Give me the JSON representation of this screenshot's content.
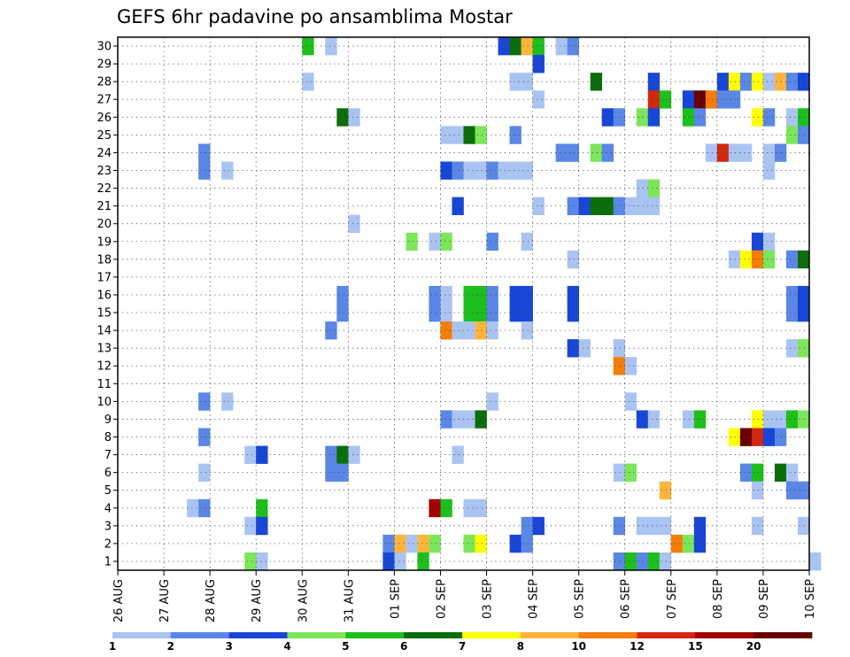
{
  "chart_data": {
    "type": "heatmap",
    "title": "GEFS 6hr padavine po ansamblima Mostar",
    "xlabel": "",
    "ylabel": "",
    "x_ticks": [
      "26 AUG",
      "27 AUG",
      "28 AUG",
      "29 AUG",
      "30 AUG",
      "31 AUG",
      "01 SEP",
      "02 SEP",
      "03 SEP",
      "04 SEP",
      "05 SEP",
      "06 SEP",
      "07 SEP",
      "08 SEP",
      "09 SEP",
      "10 SEP"
    ],
    "y_ticks": [
      1,
      2,
      3,
      4,
      5,
      6,
      7,
      8,
      9,
      10,
      11,
      12,
      13,
      14,
      15,
      16,
      17,
      18,
      19,
      20,
      21,
      22,
      23,
      24,
      25,
      26,
      27,
      28,
      29,
      30
    ],
    "xlim": [
      0,
      15
    ],
    "ylim": [
      0.5,
      30.5
    ],
    "x_unit": "days from 26 AUG",
    "grid": true,
    "colorbar": {
      "levels": [
        1,
        2,
        3,
        4,
        5,
        6,
        7,
        8,
        10,
        12,
        15,
        20
      ],
      "colors": [
        "#aac4f2",
        "#5a86e6",
        "#1846d6",
        "#7ce65a",
        "#1cbf1c",
        "#0b6e0b",
        "#ffff00",
        "#ffb43c",
        "#f57d0a",
        "#d22810",
        "#a00000",
        "#690000"
      ]
    },
    "cells": [
      {
        "m": 30,
        "t": 4.0,
        "c": 4
      },
      {
        "m": 30,
        "t": 4.5,
        "c": 0
      },
      {
        "m": 30,
        "t": 8.25,
        "c": 2
      },
      {
        "m": 30,
        "t": 8.5,
        "c": 5
      },
      {
        "m": 30,
        "t": 8.75,
        "c": 7
      },
      {
        "m": 30,
        "t": 9.0,
        "c": 4
      },
      {
        "m": 30,
        "t": 9.5,
        "c": 0
      },
      {
        "m": 30,
        "t": 9.75,
        "c": 1
      },
      {
        "m": 29,
        "t": 9.0,
        "c": 2
      },
      {
        "m": 28,
        "t": 4.0,
        "c": 0
      },
      {
        "m": 28,
        "t": 8.5,
        "c": 0
      },
      {
        "m": 28,
        "t": 8.75,
        "c": 0
      },
      {
        "m": 28,
        "t": 10.25,
        "c": 5
      },
      {
        "m": 28,
        "t": 11.5,
        "c": 2
      },
      {
        "m": 28,
        "t": 13.0,
        "c": 2
      },
      {
        "m": 28,
        "t": 13.25,
        "c": 6
      },
      {
        "m": 28,
        "t": 13.5,
        "c": 1
      },
      {
        "m": 28,
        "t": 13.75,
        "c": 6
      },
      {
        "m": 28,
        "t": 14.0,
        "c": 0
      },
      {
        "m": 28,
        "t": 14.25,
        "c": 7
      },
      {
        "m": 28,
        "t": 14.5,
        "c": 1
      },
      {
        "m": 28,
        "t": 14.75,
        "c": 2
      },
      {
        "m": 27,
        "t": 9.0,
        "c": 0
      },
      {
        "m": 27,
        "t": 11.5,
        "c": 9
      },
      {
        "m": 27,
        "t": 11.75,
        "c": 4
      },
      {
        "m": 27,
        "t": 12.25,
        "c": 2
      },
      {
        "m": 27,
        "t": 12.5,
        "c": 11
      },
      {
        "m": 27,
        "t": 12.75,
        "c": 8
      },
      {
        "m": 27,
        "t": 13.0,
        "c": 1
      },
      {
        "m": 27,
        "t": 13.25,
        "c": 1
      },
      {
        "m": 26,
        "t": 4.75,
        "c": 5
      },
      {
        "m": 26,
        "t": 5.0,
        "c": 0
      },
      {
        "m": 26,
        "t": 10.5,
        "c": 2
      },
      {
        "m": 26,
        "t": 10.75,
        "c": 1
      },
      {
        "m": 26,
        "t": 11.25,
        "c": 3
      },
      {
        "m": 26,
        "t": 11.5,
        "c": 2
      },
      {
        "m": 26,
        "t": 12.25,
        "c": 4
      },
      {
        "m": 26,
        "t": 12.5,
        "c": 1
      },
      {
        "m": 26,
        "t": 13.75,
        "c": 6
      },
      {
        "m": 26,
        "t": 14.0,
        "c": 1
      },
      {
        "m": 26,
        "t": 14.5,
        "c": 0
      },
      {
        "m": 26,
        "t": 14.75,
        "c": 4
      },
      {
        "m": 25,
        "t": 7.0,
        "c": 0
      },
      {
        "m": 25,
        "t": 7.25,
        "c": 0
      },
      {
        "m": 25,
        "t": 7.5,
        "c": 5
      },
      {
        "m": 25,
        "t": 7.75,
        "c": 3
      },
      {
        "m": 25,
        "t": 8.5,
        "c": 1
      },
      {
        "m": 25,
        "t": 14.5,
        "c": 3
      },
      {
        "m": 25,
        "t": 14.75,
        "c": 1
      },
      {
        "m": 24,
        "t": 1.75,
        "c": 1
      },
      {
        "m": 24,
        "t": 9.5,
        "c": 1
      },
      {
        "m": 24,
        "t": 9.75,
        "c": 1
      },
      {
        "m": 24,
        "t": 10.25,
        "c": 3
      },
      {
        "m": 24,
        "t": 10.5,
        "c": 1
      },
      {
        "m": 24,
        "t": 12.75,
        "c": 0
      },
      {
        "m": 24,
        "t": 13.0,
        "c": 9
      },
      {
        "m": 24,
        "t": 13.25,
        "c": 0
      },
      {
        "m": 24,
        "t": 13.5,
        "c": 0
      },
      {
        "m": 24,
        "t": 14.0,
        "c": 0
      },
      {
        "m": 24,
        "t": 14.25,
        "c": 1
      },
      {
        "m": 23,
        "t": 1.75,
        "c": 1
      },
      {
        "m": 23,
        "t": 2.25,
        "c": 0
      },
      {
        "m": 23,
        "t": 7.0,
        "c": 2
      },
      {
        "m": 23,
        "t": 7.25,
        "c": 1
      },
      {
        "m": 23,
        "t": 7.5,
        "c": 0
      },
      {
        "m": 23,
        "t": 7.75,
        "c": 0
      },
      {
        "m": 23,
        "t": 8.0,
        "c": 1
      },
      {
        "m": 23,
        "t": 8.25,
        "c": 0
      },
      {
        "m": 23,
        "t": 8.5,
        "c": 0
      },
      {
        "m": 23,
        "t": 8.75,
        "c": 0
      },
      {
        "m": 23,
        "t": 14.0,
        "c": 0
      },
      {
        "m": 22,
        "t": 11.25,
        "c": 0
      },
      {
        "m": 22,
        "t": 11.5,
        "c": 3
      },
      {
        "m": 21,
        "t": 7.25,
        "c": 2
      },
      {
        "m": 21,
        "t": 9.0,
        "c": 0
      },
      {
        "m": 21,
        "t": 9.75,
        "c": 1
      },
      {
        "m": 21,
        "t": 10.0,
        "c": 2
      },
      {
        "m": 21,
        "t": 10.25,
        "c": 5
      },
      {
        "m": 21,
        "t": 10.5,
        "c": 5
      },
      {
        "m": 21,
        "t": 10.75,
        "c": 1
      },
      {
        "m": 21,
        "t": 11.0,
        "c": 0
      },
      {
        "m": 21,
        "t": 11.25,
        "c": 0
      },
      {
        "m": 21,
        "t": 11.5,
        "c": 0
      },
      {
        "m": 20,
        "t": 5.0,
        "c": 0
      },
      {
        "m": 19,
        "t": 6.25,
        "c": 3
      },
      {
        "m": 19,
        "t": 6.75,
        "c": 0
      },
      {
        "m": 19,
        "t": 7.0,
        "c": 3
      },
      {
        "m": 19,
        "t": 8.0,
        "c": 1
      },
      {
        "m": 19,
        "t": 8.75,
        "c": 0
      },
      {
        "m": 19,
        "t": 13.75,
        "c": 2
      },
      {
        "m": 19,
        "t": 14.0,
        "c": 0
      },
      {
        "m": 18,
        "t": 9.75,
        "c": 0
      },
      {
        "m": 18,
        "t": 13.25,
        "c": 0
      },
      {
        "m": 18,
        "t": 13.5,
        "c": 6
      },
      {
        "m": 18,
        "t": 13.75,
        "c": 8
      },
      {
        "m": 18,
        "t": 14.0,
        "c": 3
      },
      {
        "m": 18,
        "t": 14.5,
        "c": 1
      },
      {
        "m": 18,
        "t": 14.75,
        "c": 5
      },
      {
        "m": 16,
        "t": 4.75,
        "c": 1
      },
      {
        "m": 16,
        "t": 6.75,
        "c": 1
      },
      {
        "m": 16,
        "t": 7.0,
        "c": 0
      },
      {
        "m": 16,
        "t": 7.5,
        "c": 4
      },
      {
        "m": 16,
        "t": 7.75,
        "c": 4
      },
      {
        "m": 16,
        "t": 8.0,
        "c": 1
      },
      {
        "m": 16,
        "t": 8.5,
        "c": 2
      },
      {
        "m": 16,
        "t": 8.75,
        "c": 2
      },
      {
        "m": 16,
        "t": 9.75,
        "c": 2
      },
      {
        "m": 16,
        "t": 14.5,
        "c": 1
      },
      {
        "m": 16,
        "t": 14.75,
        "c": 2
      },
      {
        "m": 15,
        "t": 4.75,
        "c": 1
      },
      {
        "m": 15,
        "t": 6.75,
        "c": 1
      },
      {
        "m": 15,
        "t": 7.0,
        "c": 0
      },
      {
        "m": 15,
        "t": 7.5,
        "c": 4
      },
      {
        "m": 15,
        "t": 7.75,
        "c": 4
      },
      {
        "m": 15,
        "t": 8.0,
        "c": 1
      },
      {
        "m": 15,
        "t": 8.5,
        "c": 2
      },
      {
        "m": 15,
        "t": 8.75,
        "c": 2
      },
      {
        "m": 15,
        "t": 9.75,
        "c": 2
      },
      {
        "m": 15,
        "t": 14.5,
        "c": 1
      },
      {
        "m": 15,
        "t": 14.75,
        "c": 2
      },
      {
        "m": 14,
        "t": 4.5,
        "c": 1
      },
      {
        "m": 14,
        "t": 7.0,
        "c": 8
      },
      {
        "m": 14,
        "t": 7.25,
        "c": 0
      },
      {
        "m": 14,
        "t": 7.5,
        "c": 0
      },
      {
        "m": 14,
        "t": 7.75,
        "c": 7
      },
      {
        "m": 14,
        "t": 8.0,
        "c": 0
      },
      {
        "m": 14,
        "t": 8.75,
        "c": 0
      },
      {
        "m": 13,
        "t": 9.75,
        "c": 2
      },
      {
        "m": 13,
        "t": 10.0,
        "c": 0
      },
      {
        "m": 13,
        "t": 10.75,
        "c": 0
      },
      {
        "m": 13,
        "t": 14.5,
        "c": 0
      },
      {
        "m": 13,
        "t": 14.75,
        "c": 3
      },
      {
        "m": 12,
        "t": 10.75,
        "c": 8
      },
      {
        "m": 12,
        "t": 11.0,
        "c": 0
      },
      {
        "m": 10,
        "t": 1.75,
        "c": 1
      },
      {
        "m": 10,
        "t": 2.25,
        "c": 0
      },
      {
        "m": 10,
        "t": 8.0,
        "c": 0
      },
      {
        "m": 10,
        "t": 11.0,
        "c": 0
      },
      {
        "m": 9,
        "t": 7.0,
        "c": 1
      },
      {
        "m": 9,
        "t": 7.25,
        "c": 0
      },
      {
        "m": 9,
        "t": 7.5,
        "c": 0
      },
      {
        "m": 9,
        "t": 7.75,
        "c": 5
      },
      {
        "m": 9,
        "t": 11.25,
        "c": 2
      },
      {
        "m": 9,
        "t": 11.5,
        "c": 0
      },
      {
        "m": 9,
        "t": 12.25,
        "c": 0
      },
      {
        "m": 9,
        "t": 12.5,
        "c": 4
      },
      {
        "m": 9,
        "t": 13.75,
        "c": 6
      },
      {
        "m": 9,
        "t": 14.0,
        "c": 0
      },
      {
        "m": 9,
        "t": 14.25,
        "c": 0
      },
      {
        "m": 9,
        "t": 14.5,
        "c": 4
      },
      {
        "m": 9,
        "t": 14.75,
        "c": 3
      },
      {
        "m": 8,
        "t": 1.75,
        "c": 1
      },
      {
        "m": 8,
        "t": 13.25,
        "c": 6
      },
      {
        "m": 8,
        "t": 13.5,
        "c": 11
      },
      {
        "m": 8,
        "t": 13.75,
        "c": 9
      },
      {
        "m": 8,
        "t": 14.0,
        "c": 2
      },
      {
        "m": 8,
        "t": 14.25,
        "c": 1
      },
      {
        "m": 7,
        "t": 2.75,
        "c": 0
      },
      {
        "m": 7,
        "t": 3.0,
        "c": 2
      },
      {
        "m": 7,
        "t": 4.5,
        "c": 1
      },
      {
        "m": 7,
        "t": 4.75,
        "c": 5
      },
      {
        "m": 7,
        "t": 5.0,
        "c": 0
      },
      {
        "m": 7,
        "t": 7.25,
        "c": 0
      },
      {
        "m": 6,
        "t": 1.75,
        "c": 0
      },
      {
        "m": 6,
        "t": 4.5,
        "c": 1
      },
      {
        "m": 6,
        "t": 4.75,
        "c": 1
      },
      {
        "m": 6,
        "t": 10.75,
        "c": 0
      },
      {
        "m": 6,
        "t": 11.0,
        "c": 3
      },
      {
        "m": 6,
        "t": 13.5,
        "c": 1
      },
      {
        "m": 6,
        "t": 13.75,
        "c": 4
      },
      {
        "m": 6,
        "t": 14.25,
        "c": 5
      },
      {
        "m": 6,
        "t": 14.5,
        "c": 0
      },
      {
        "m": 5,
        "t": 11.75,
        "c": 7
      },
      {
        "m": 5,
        "t": 13.75,
        "c": 0
      },
      {
        "m": 5,
        "t": 14.5,
        "c": 1
      },
      {
        "m": 5,
        "t": 14.75,
        "c": 1
      },
      {
        "m": 4,
        "t": 1.5,
        "c": 0
      },
      {
        "m": 4,
        "t": 1.75,
        "c": 1
      },
      {
        "m": 4,
        "t": 3.0,
        "c": 4
      },
      {
        "m": 4,
        "t": 6.75,
        "c": 10
      },
      {
        "m": 4,
        "t": 7.0,
        "c": 4
      },
      {
        "m": 4,
        "t": 7.5,
        "c": 0
      },
      {
        "m": 4,
        "t": 7.75,
        "c": 0
      },
      {
        "m": 3,
        "t": 2.75,
        "c": 0
      },
      {
        "m": 3,
        "t": 3.0,
        "c": 2
      },
      {
        "m": 3,
        "t": 8.75,
        "c": 1
      },
      {
        "m": 3,
        "t": 9.0,
        "c": 2
      },
      {
        "m": 3,
        "t": 10.75,
        "c": 1
      },
      {
        "m": 3,
        "t": 11.25,
        "c": 0
      },
      {
        "m": 3,
        "t": 11.5,
        "c": 0
      },
      {
        "m": 3,
        "t": 11.75,
        "c": 0
      },
      {
        "m": 3,
        "t": 12.5,
        "c": 2
      },
      {
        "m": 3,
        "t": 13.75,
        "c": 0
      },
      {
        "m": 3,
        "t": 14.75,
        "c": 0
      },
      {
        "m": 2,
        "t": 5.75,
        "c": 1
      },
      {
        "m": 2,
        "t": 6.0,
        "c": 7
      },
      {
        "m": 2,
        "t": 6.25,
        "c": 0
      },
      {
        "m": 2,
        "t": 6.5,
        "c": 7
      },
      {
        "m": 2,
        "t": 6.75,
        "c": 3
      },
      {
        "m": 2,
        "t": 7.5,
        "c": 3
      },
      {
        "m": 2,
        "t": 7.75,
        "c": 6
      },
      {
        "m": 2,
        "t": 8.5,
        "c": 2
      },
      {
        "m": 2,
        "t": 8.75,
        "c": 1
      },
      {
        "m": 2,
        "t": 12.0,
        "c": 8
      },
      {
        "m": 2,
        "t": 12.25,
        "c": 3
      },
      {
        "m": 2,
        "t": 12.5,
        "c": 2
      },
      {
        "m": 1,
        "t": 2.75,
        "c": 3
      },
      {
        "m": 1,
        "t": 3.0,
        "c": 0
      },
      {
        "m": 1,
        "t": 5.75,
        "c": 2
      },
      {
        "m": 1,
        "t": 6.0,
        "c": 0
      },
      {
        "m": 1,
        "t": 6.5,
        "c": 4
      },
      {
        "m": 1,
        "t": 10.75,
        "c": 1
      },
      {
        "m": 1,
        "t": 11.0,
        "c": 4
      },
      {
        "m": 1,
        "t": 11.25,
        "c": 1
      },
      {
        "m": 1,
        "t": 11.5,
        "c": 4
      },
      {
        "m": 1,
        "t": 11.75,
        "c": 0
      },
      {
        "m": 1,
        "t": 15.0,
        "c": 0
      }
    ]
  }
}
